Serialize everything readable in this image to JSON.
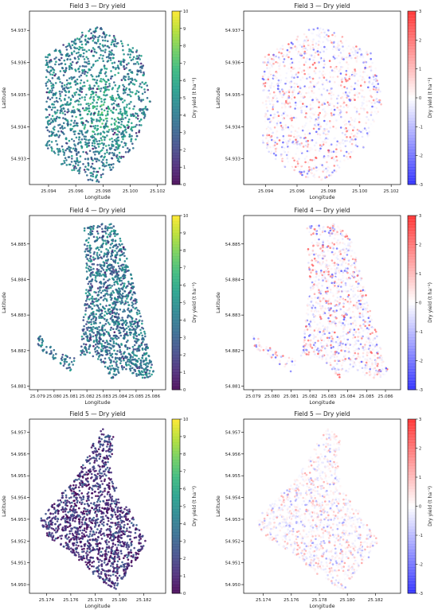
{
  "chart_data": [
    {
      "type": "scatter",
      "variant": "map",
      "title": "Field 3 — Dry yield",
      "xlabel": "Longitude",
      "ylabel": "Latitude",
      "xticks": [
        "25.094",
        "25.096",
        "25.098",
        "25.100",
        "25.102"
      ],
      "yticks": [
        "54.933",
        "54.934",
        "54.935",
        "54.936",
        "54.937"
      ],
      "xtick_values": [
        25.094,
        25.096,
        25.098,
        25.1,
        25.102
      ],
      "ytick_values": [
        54.933,
        54.934,
        54.935,
        54.936,
        54.937
      ],
      "xlim": [
        25.0926,
        25.1026
      ],
      "ylim": [
        54.9322,
        54.9376
      ],
      "colorbar": {
        "label": "Dry yield (t ha⁻¹)",
        "ticks": [
          "0",
          "1",
          "2",
          "3",
          "4",
          "5",
          "6",
          "7",
          "8",
          "9",
          "10"
        ],
        "tick_values": [
          0,
          1,
          2,
          3,
          4,
          5,
          6,
          7,
          8,
          9,
          10
        ],
        "range": [
          0,
          10
        ],
        "colormap": "viridis"
      },
      "field_boundary": [
        [
          25.0938,
          54.9334
        ],
        [
          25.095,
          54.9328
        ],
        [
          25.0975,
          54.9322
        ],
        [
          25.1002,
          54.9333
        ],
        [
          25.1015,
          54.9348
        ],
        [
          25.1008,
          54.9363
        ],
        [
          25.0974,
          54.9372
        ],
        [
          25.0938,
          54.9362
        ]
      ],
      "yield_level": "mostly 3–6 t ha⁻¹ with higher values near 25.098, 54.9345"
    },
    {
      "type": "scatter",
      "variant": "map",
      "title": "Field 3 — Dry yield",
      "xlabel": "Longitude",
      "ylabel": "Latitude",
      "xticks": [
        "25.094",
        "25.096",
        "25.098",
        "25.100",
        "25.102"
      ],
      "yticks": [
        "54.933",
        "54.934",
        "54.935",
        "54.936",
        "54.937"
      ],
      "xtick_values": [
        25.094,
        25.096,
        25.098,
        25.1,
        25.102
      ],
      "ytick_values": [
        54.933,
        54.934,
        54.935,
        54.936,
        54.937
      ],
      "xlim": [
        25.0926,
        25.1026
      ],
      "ylim": [
        54.9322,
        54.9376
      ],
      "colorbar": {
        "label": "Dry yield (t ha⁻¹)",
        "ticks": [
          "3",
          "2",
          "1",
          "0",
          "-1",
          "-2",
          "-3"
        ],
        "tick_values": [
          3,
          2,
          1,
          0,
          -1,
          -2,
          -3
        ],
        "range": [
          -3,
          3
        ],
        "colormap": "bwr"
      },
      "field_boundary": [
        [
          25.0938,
          54.9334
        ],
        [
          25.095,
          54.9328
        ],
        [
          25.0975,
          54.9322
        ],
        [
          25.1002,
          54.9333
        ],
        [
          25.1015,
          54.9348
        ],
        [
          25.1008,
          54.9363
        ],
        [
          25.0974,
          54.9372
        ],
        [
          25.0938,
          54.9362
        ]
      ]
    },
    {
      "type": "scatter",
      "variant": "map",
      "title": "Field 4 — Dry yield",
      "xlabel": "Longitude",
      "ylabel": "Latitude",
      "xticks": [
        "25.079",
        "25.080",
        "25.081",
        "25.082",
        "25.083",
        "25.084",
        "25.085",
        "25.086"
      ],
      "yticks": [
        "54.881",
        "54.882",
        "54.883",
        "54.884",
        "54.885"
      ],
      "xtick_values": [
        25.079,
        25.08,
        25.081,
        25.082,
        25.083,
        25.084,
        25.085,
        25.086
      ],
      "ytick_values": [
        54.881,
        54.882,
        54.883,
        54.884,
        54.885
      ],
      "xlim": [
        25.0785,
        25.0868
      ],
      "ylim": [
        54.8809,
        54.8858
      ],
      "colorbar": {
        "label": "Dry yield (t ha⁻¹)",
        "ticks": [
          "0",
          "1",
          "2",
          "3",
          "4",
          "5",
          "6",
          "7",
          "8",
          "9",
          "10"
        ],
        "tick_values": [
          0,
          1,
          2,
          3,
          4,
          5,
          6,
          7,
          8,
          9,
          10
        ],
        "range": [
          0,
          10
        ],
        "colormap": "viridis"
      },
      "field_boundary": [
        [
          25.0818,
          54.8855
        ],
        [
          25.0835,
          54.8856
        ],
        [
          25.0842,
          54.8851
        ],
        [
          25.0857,
          54.8822
        ],
        [
          25.0862,
          54.8813
        ],
        [
          25.0853,
          54.8812
        ],
        [
          25.0843,
          54.8815
        ],
        [
          25.0835,
          54.8812
        ],
        [
          25.083,
          54.8816
        ],
        [
          25.0822,
          54.8819
        ],
        [
          25.081,
          54.8818
        ],
        [
          25.0795,
          54.8822
        ],
        [
          25.079,
          54.8825
        ],
        [
          25.079,
          54.8821
        ],
        [
          25.081,
          54.8814
        ],
        [
          25.0816,
          54.882
        ],
        [
          25.082,
          54.8839
        ]
      ],
      "yield_level": "mostly 3–5 t ha⁻¹"
    },
    {
      "type": "scatter",
      "variant": "map",
      "title": "Field 4 — Dry yield",
      "xlabel": "Longitude",
      "ylabel": "Latitude",
      "xticks": [
        "25.079",
        "25.080",
        "25.081",
        "25.082",
        "25.083",
        "25.084",
        "25.085",
        "25.086"
      ],
      "yticks": [
        "54.881",
        "54.882",
        "54.883",
        "54.884",
        "54.885"
      ],
      "xtick_values": [
        25.079,
        25.08,
        25.081,
        25.082,
        25.083,
        25.084,
        25.085,
        25.086
      ],
      "ytick_values": [
        54.881,
        54.882,
        54.883,
        54.884,
        54.885
      ],
      "xlim": [
        25.0785,
        25.0868
      ],
      "ylim": [
        54.8809,
        54.8858
      ],
      "colorbar": {
        "label": "Dry yield (t ha⁻¹)",
        "ticks": [
          "3",
          "2",
          "1",
          "0",
          "-1",
          "-2",
          "-3"
        ],
        "tick_values": [
          3,
          2,
          1,
          0,
          -1,
          -2,
          -3
        ],
        "range": [
          -3,
          3
        ],
        "colormap": "bwr"
      },
      "field_boundary": [
        [
          25.0818,
          54.8855
        ],
        [
          25.0835,
          54.8856
        ],
        [
          25.0842,
          54.8851
        ],
        [
          25.0857,
          54.8822
        ],
        [
          25.0862,
          54.8813
        ],
        [
          25.0853,
          54.8812
        ],
        [
          25.0843,
          54.8815
        ],
        [
          25.0835,
          54.8812
        ],
        [
          25.083,
          54.8816
        ],
        [
          25.0822,
          54.8819
        ],
        [
          25.081,
          54.8818
        ],
        [
          25.0795,
          54.8822
        ],
        [
          25.079,
          54.8825
        ],
        [
          25.079,
          54.8821
        ],
        [
          25.081,
          54.8814
        ],
        [
          25.0816,
          54.882
        ],
        [
          25.082,
          54.8839
        ]
      ]
    },
    {
      "type": "scatter",
      "variant": "map",
      "title": "Field 5 — Dry yield",
      "xlabel": "Longitude",
      "ylabel": "Latitude",
      "xticks": [
        "25.174",
        "25.176",
        "25.178",
        "25.180",
        "25.182"
      ],
      "yticks": [
        "54.950",
        "54.951",
        "54.952",
        "54.953",
        "54.954",
        "54.955",
        "54.956",
        "54.957"
      ],
      "xtick_values": [
        25.174,
        25.176,
        25.178,
        25.18,
        25.182
      ],
      "ytick_values": [
        54.95,
        54.951,
        54.952,
        54.953,
        54.954,
        54.955,
        54.956,
        54.957
      ],
      "xlim": [
        25.1726,
        25.1838
      ],
      "ylim": [
        54.9496,
        54.9576
      ],
      "colorbar": {
        "label": "Dry yield (t ha⁻¹)",
        "ticks": [
          "0",
          "1",
          "2",
          "3",
          "4",
          "5",
          "6",
          "7",
          "8",
          "9",
          "10"
        ],
        "tick_values": [
          0,
          1,
          2,
          3,
          4,
          5,
          6,
          7,
          8,
          9,
          10
        ],
        "range": [
          0,
          10
        ],
        "colormap": "viridis"
      },
      "field_boundary": [
        [
          25.1735,
          54.953
        ],
        [
          25.1765,
          54.955
        ],
        [
          25.1785,
          54.9572
        ],
        [
          25.1795,
          54.9568
        ],
        [
          25.1793,
          54.9552
        ],
        [
          25.18,
          54.954
        ],
        [
          25.1808,
          54.9535
        ],
        [
          25.1815,
          54.9527
        ],
        [
          25.1822,
          54.952
        ],
        [
          25.1815,
          54.9512
        ],
        [
          25.1808,
          54.9507
        ],
        [
          25.1797,
          54.9497
        ],
        [
          25.1782,
          54.9503
        ],
        [
          25.176,
          54.9515
        ],
        [
          25.174,
          54.9522
        ]
      ],
      "yield_level": "mostly 0–2 t ha⁻¹"
    },
    {
      "type": "scatter",
      "variant": "map",
      "title": "Field 5 — Dry yield",
      "xlabel": "Longitude",
      "ylabel": "Latitude",
      "xticks": [
        "25.174",
        "25.176",
        "25.178",
        "25.180",
        "25.182"
      ],
      "yticks": [
        "54.950",
        "54.951",
        "54.952",
        "54.953",
        "54.954",
        "54.955",
        "54.956",
        "54.957"
      ],
      "xtick_values": [
        25.174,
        25.176,
        25.178,
        25.18,
        25.182
      ],
      "ytick_values": [
        54.95,
        54.951,
        54.952,
        54.953,
        54.954,
        54.955,
        54.956,
        54.957
      ],
      "xlim": [
        25.1726,
        25.1838
      ],
      "ylim": [
        54.9496,
        54.9576
      ],
      "colorbar": {
        "label": "Dry yield (t ha⁻¹)",
        "ticks": [
          "3",
          "2",
          "1",
          "0",
          "-1",
          "-2",
          "-3"
        ],
        "tick_values": [
          3,
          2,
          1,
          0,
          -1,
          -2,
          -3
        ],
        "range": [
          -3,
          3
        ],
        "colormap": "bwr"
      },
      "field_boundary": [
        [
          25.1735,
          54.953
        ],
        [
          25.1765,
          54.955
        ],
        [
          25.1785,
          54.9572
        ],
        [
          25.1795,
          54.9568
        ],
        [
          25.1793,
          54.9552
        ],
        [
          25.18,
          54.954
        ],
        [
          25.1808,
          54.9535
        ],
        [
          25.1815,
          54.9527
        ],
        [
          25.1822,
          54.952
        ],
        [
          25.1815,
          54.9512
        ],
        [
          25.1808,
          54.9507
        ],
        [
          25.1797,
          54.9497
        ],
        [
          25.1782,
          54.9503
        ],
        [
          25.176,
          54.9515
        ],
        [
          25.174,
          54.9522
        ]
      ]
    }
  ]
}
